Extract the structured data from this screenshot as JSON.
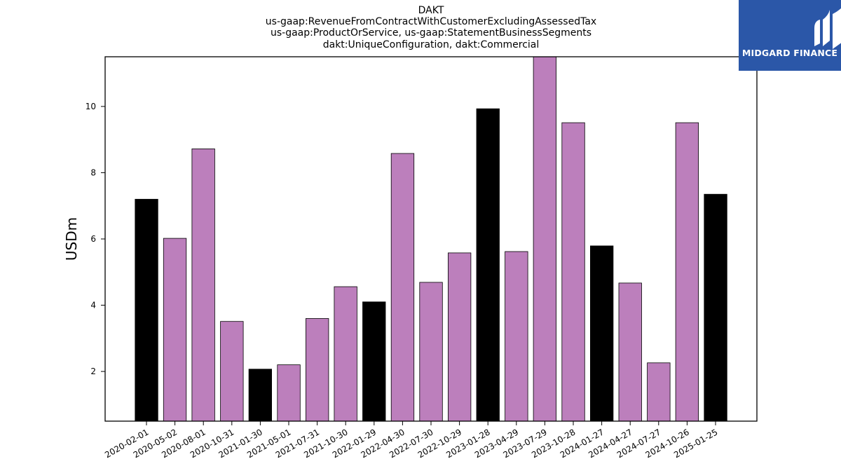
{
  "colors": {
    "highlight": "#000000",
    "regular": "#bc7fbc",
    "logo_bg": "#2b57a8"
  },
  "logo": {
    "icon": "midgard-logo-icon",
    "text": "MIDGARD FINANCE"
  },
  "chart_data": {
    "type": "bar",
    "title_lines": [
      "DAKT",
      "us-gaap:RevenueFromContractWithCustomerExcludingAssessedTax",
      "us-gaap:ProductOrService, us-gaap:StatementBusinessSegments",
      "dakt:UniqueConfiguration, dakt:Commercial"
    ],
    "xlabel": "",
    "ylabel": "USDm",
    "ylim": [
      0.5,
      11.5
    ],
    "yticks": [
      2,
      4,
      6,
      8,
      10
    ],
    "grid": false,
    "categories": [
      "2020-02-01",
      "2020-05-02",
      "2020-08-01",
      "2020-10-31",
      "2021-01-30",
      "2021-05-01",
      "2021-07-31",
      "2021-10-30",
      "2022-01-29",
      "2022-04-30",
      "2022-07-30",
      "2022-10-29",
      "2023-01-28",
      "2023-04-29",
      "2023-07-29",
      "2023-10-28",
      "2024-01-27",
      "2024-04-27",
      "2024-07-27",
      "2024-10-26",
      "2025-01-25"
    ],
    "values": [
      7.2,
      6.02,
      8.72,
      3.51,
      2.07,
      2.2,
      3.6,
      4.56,
      4.1,
      8.58,
      4.69,
      5.58,
      9.93,
      5.62,
      11.55,
      9.51,
      5.79,
      4.67,
      2.26,
      9.51,
      7.35
    ],
    "highlighted": [
      true,
      false,
      false,
      false,
      true,
      false,
      false,
      false,
      true,
      false,
      false,
      false,
      true,
      false,
      false,
      false,
      true,
      false,
      false,
      false,
      true
    ]
  }
}
